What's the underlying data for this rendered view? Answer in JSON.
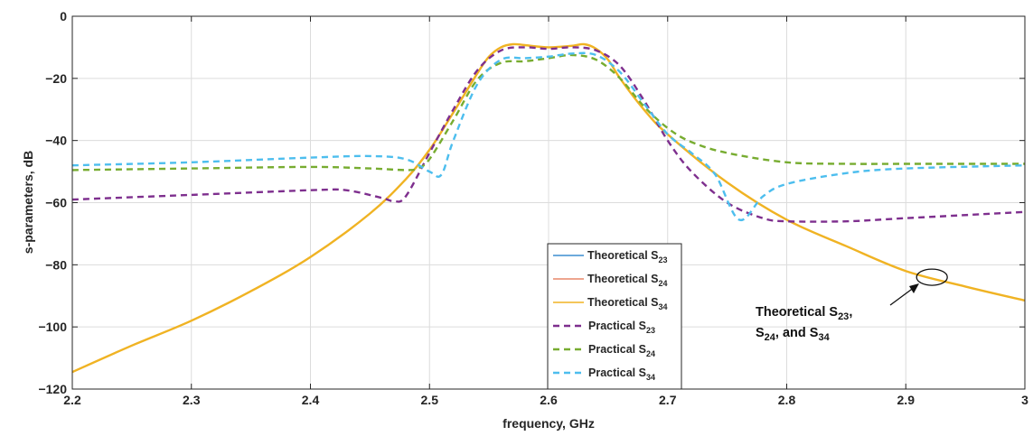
{
  "chart_data": {
    "type": "line",
    "title": "",
    "xlabel": "frequency, GHz",
    "ylabel": "s-parameters, dB",
    "xlim": [
      2.2,
      3.0
    ],
    "ylim": [
      -120,
      0
    ],
    "xticks": [
      2.2,
      2.3,
      2.4,
      2.5,
      2.6,
      2.7,
      2.8,
      2.9,
      3.0
    ],
    "xtick_labels": [
      "2.2",
      "2.3",
      "2.4",
      "2.5",
      "2.6",
      "2.7",
      "2.8",
      "2.9",
      "3"
    ],
    "yticks": [
      0,
      -20,
      -40,
      -60,
      -80,
      -100,
      -120
    ],
    "ytick_labels": [
      "0",
      "−20",
      "−40",
      "−60",
      "−80",
      "−100",
      "−120"
    ],
    "grid": true,
    "legend_position": "bottom-center",
    "series": [
      {
        "name": "Theoretical S23",
        "legend_main": "Theoretical S",
        "legend_sub": "23",
        "color": "#3c8ed0",
        "style": "solid",
        "x": [
          2.2,
          2.25,
          2.3,
          2.35,
          2.4,
          2.45,
          2.48,
          2.5,
          2.52,
          2.54,
          2.55,
          2.56,
          2.57,
          2.58,
          2.6,
          2.62,
          2.63,
          2.64,
          2.65,
          2.66,
          2.68,
          2.7,
          2.75,
          2.8,
          2.85,
          2.9,
          2.95,
          3.0
        ],
        "y": [
          -114.5,
          -106,
          -98,
          -88.5,
          -77.5,
          -63.5,
          -52.5,
          -43,
          -31,
          -18.5,
          -13,
          -10,
          -9,
          -9.3,
          -10,
          -9.5,
          -9,
          -10.5,
          -14,
          -20,
          -30,
          -38,
          -53.5,
          -65.5,
          -74,
          -82,
          -87,
          -91.5
        ]
      },
      {
        "name": "Theoretical S24",
        "legend_main": "Theoretical S",
        "legend_sub": "24",
        "color": "#e8876a",
        "style": "solid",
        "x": [
          2.2,
          2.25,
          2.3,
          2.35,
          2.4,
          2.45,
          2.48,
          2.5,
          2.52,
          2.54,
          2.55,
          2.56,
          2.57,
          2.58,
          2.6,
          2.62,
          2.63,
          2.64,
          2.65,
          2.66,
          2.68,
          2.7,
          2.75,
          2.8,
          2.85,
          2.9,
          2.95,
          3.0
        ],
        "y": [
          -114.5,
          -106,
          -98,
          -88.5,
          -77.5,
          -63.5,
          -52.5,
          -43,
          -31,
          -18.5,
          -13,
          -10,
          -9,
          -9.3,
          -10,
          -9.5,
          -9,
          -10.5,
          -14,
          -20,
          -30,
          -38,
          -53.5,
          -65.5,
          -74,
          -82,
          -87,
          -91.5
        ]
      },
      {
        "name": "Theoretical S34",
        "legend_main": "Theoretical S",
        "legend_sub": "34",
        "color": "#f0b323",
        "style": "solid",
        "x": [
          2.2,
          2.25,
          2.3,
          2.35,
          2.4,
          2.45,
          2.48,
          2.5,
          2.52,
          2.54,
          2.55,
          2.56,
          2.57,
          2.58,
          2.6,
          2.62,
          2.63,
          2.64,
          2.65,
          2.66,
          2.68,
          2.7,
          2.75,
          2.8,
          2.85,
          2.9,
          2.95,
          3.0
        ],
        "y": [
          -114.5,
          -106,
          -98,
          -88.5,
          -77.5,
          -63.5,
          -52.5,
          -43,
          -31,
          -18.5,
          -13,
          -10,
          -9,
          -9.3,
          -10,
          -9.5,
          -9,
          -10.5,
          -14,
          -20,
          -30,
          -38,
          -53.5,
          -65.5,
          -74,
          -82,
          -87,
          -91.5
        ]
      },
      {
        "name": "Practical S23",
        "legend_main": "Practical S",
        "legend_sub": "23",
        "color": "#7e2f8e",
        "style": "dashed",
        "x": [
          2.2,
          2.3,
          2.4,
          2.43,
          2.46,
          2.47,
          2.48,
          2.5,
          2.52,
          2.54,
          2.56,
          2.58,
          2.6,
          2.62,
          2.64,
          2.66,
          2.68,
          2.7,
          2.72,
          2.75,
          2.78,
          2.8,
          2.85,
          2.9,
          3.0
        ],
        "y": [
          -59,
          -57.5,
          -56,
          -56,
          -58.5,
          -59.5,
          -58,
          -44,
          -30,
          -17.5,
          -11,
          -10,
          -10.5,
          -10,
          -11,
          -16,
          -27,
          -40,
          -50,
          -60,
          -65,
          -66,
          -66,
          -65,
          -63
        ]
      },
      {
        "name": "Practical S24",
        "legend_main": "Practical S",
        "legend_sub": "24",
        "color": "#77ac30",
        "style": "dashed",
        "x": [
          2.2,
          2.3,
          2.4,
          2.45,
          2.48,
          2.49,
          2.5,
          2.52,
          2.54,
          2.56,
          2.58,
          2.6,
          2.62,
          2.64,
          2.66,
          2.68,
          2.7,
          2.72,
          2.75,
          2.8,
          2.85,
          2.9,
          3.0
        ],
        "y": [
          -49.5,
          -49,
          -48.5,
          -49,
          -49.5,
          -49,
          -46,
          -33.5,
          -20.5,
          -15,
          -14.5,
          -13.5,
          -12.5,
          -14,
          -20,
          -29,
          -36,
          -40.5,
          -44,
          -47,
          -47.5,
          -47.5,
          -47.5
        ]
      },
      {
        "name": "Practical S34",
        "legend_main": "Practical S",
        "legend_sub": "34",
        "color": "#4dbeee",
        "style": "dashed",
        "x": [
          2.2,
          2.3,
          2.4,
          2.45,
          2.48,
          2.5,
          2.51,
          2.52,
          2.54,
          2.56,
          2.58,
          2.6,
          2.62,
          2.64,
          2.66,
          2.68,
          2.7,
          2.72,
          2.74,
          2.76,
          2.78,
          2.8,
          2.85,
          2.9,
          3.0
        ],
        "y": [
          -48,
          -47,
          -45.5,
          -45,
          -46,
          -50,
          -51,
          -40,
          -22,
          -14,
          -13.5,
          -13,
          -12,
          -12.5,
          -18,
          -28,
          -38,
          -44,
          -51,
          -65.5,
          -58,
          -54,
          -50.5,
          -49,
          -48
        ]
      }
    ],
    "annotation": {
      "line1_main": "Theoretical S",
      "line1_sub": "23",
      "line1_tail": ",",
      "line2_a": "S",
      "line2_sub1": "24",
      "line2_b": ", and S",
      "line2_sub2": "34",
      "ellipse_center": [
        2.922,
        -84
      ],
      "arrow_target_label": "ellipse"
    }
  }
}
